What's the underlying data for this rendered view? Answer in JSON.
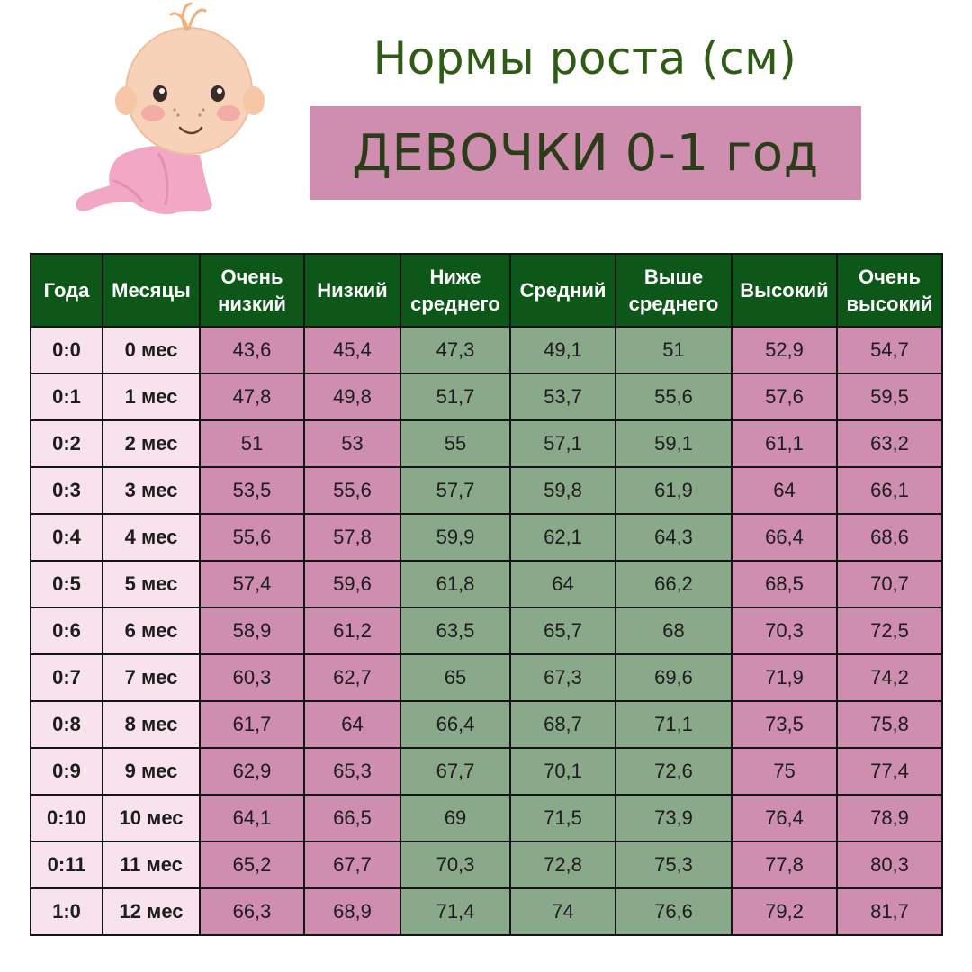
{
  "title": "Нормы роста (см)",
  "subtitle": "ДЕВОЧКИ 0-1 год",
  "colors": {
    "title": "#2e5c14",
    "banner": "#cf8db0",
    "header": "#0d5818",
    "label_cells": "#f8e3ed",
    "pink_cells": "#cf8db0",
    "green_cells": "#8aa98a"
  },
  "table": {
    "headers": [
      [
        "Года"
      ],
      [
        "Месяцы"
      ],
      [
        "Очень",
        "низкий"
      ],
      [
        "Низкий"
      ],
      [
        "Ниже",
        "среднего"
      ],
      [
        "Средний"
      ],
      [
        "Выше",
        "среднего"
      ],
      [
        "Высокий"
      ],
      [
        "Очень",
        "высокий"
      ]
    ],
    "rows": [
      [
        "0:0",
        "0 мес",
        "43,6",
        "45,4",
        "47,3",
        "49,1",
        "51",
        "52,9",
        "54,7"
      ],
      [
        "0:1",
        "1 мес",
        "47,8",
        "49,8",
        "51,7",
        "53,7",
        "55,6",
        "57,6",
        "59,5"
      ],
      [
        "0:2",
        "2 мес",
        "51",
        "53",
        "55",
        "57,1",
        "59,1",
        "61,1",
        "63,2"
      ],
      [
        "0:3",
        "3 мес",
        "53,5",
        "55,6",
        "57,7",
        "59,8",
        "61,9",
        "64",
        "66,1"
      ],
      [
        "0:4",
        "4 мес",
        "55,6",
        "57,8",
        "59,9",
        "62,1",
        "64,3",
        "66,4",
        "68,6"
      ],
      [
        "0:5",
        "5 мес",
        "57,4",
        "59,6",
        "61,8",
        "64",
        "66,2",
        "68,5",
        "70,7"
      ],
      [
        "0:6",
        "6 мес",
        "58,9",
        "61,2",
        "63,5",
        "65,7",
        "68",
        "70,3",
        "72,5"
      ],
      [
        "0:7",
        "7 мес",
        "60,3",
        "62,7",
        "65",
        "67,3",
        "69,6",
        "71,9",
        "74,2"
      ],
      [
        "0:8",
        "8 мес",
        "61,7",
        "64",
        "66,4",
        "68,7",
        "71,1",
        "73,5",
        "75,8"
      ],
      [
        "0:9",
        "9 мес",
        "62,9",
        "65,3",
        "67,7",
        "70,1",
        "72,6",
        "75",
        "77,4"
      ],
      [
        "0:10",
        "10 мес",
        "64,1",
        "66,5",
        "69",
        "71,5",
        "73,9",
        "76,4",
        "78,9"
      ],
      [
        "0:11",
        "11 мес",
        "65,2",
        "67,7",
        "70,3",
        "72,8",
        "75,3",
        "77,8",
        "80,3"
      ],
      [
        "1:0",
        "12 мес",
        "66,3",
        "68,9",
        "71,4",
        "74",
        "76,6",
        "79,2",
        "81,7"
      ]
    ]
  }
}
